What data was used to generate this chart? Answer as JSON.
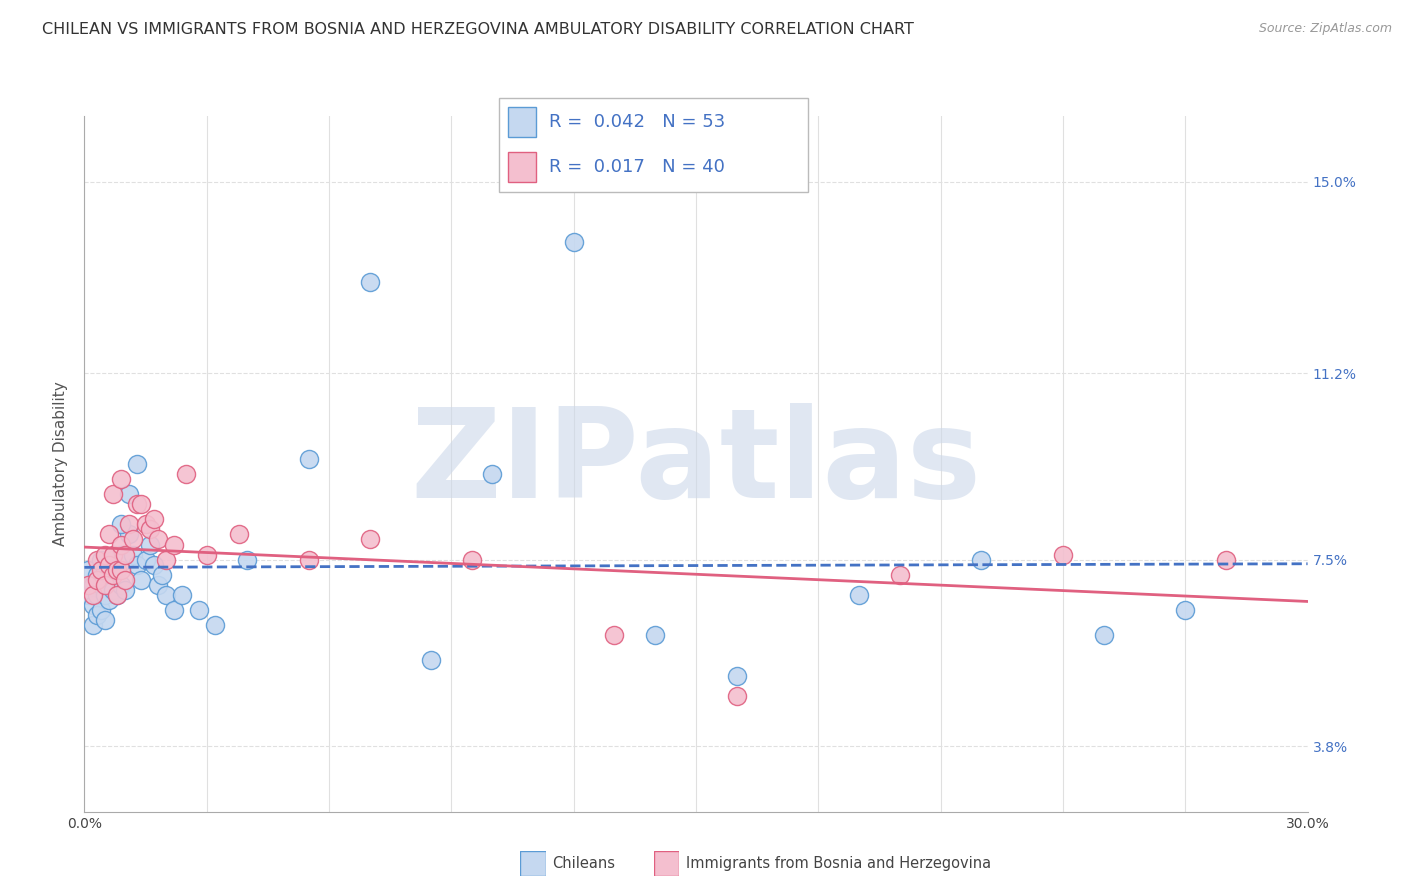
{
  "title": "CHILEAN VS IMMIGRANTS FROM BOSNIA AND HERZEGOVINA AMBULATORY DISABILITY CORRELATION CHART",
  "source": "Source: ZipAtlas.com",
  "ylabel": "Ambulatory Disability",
  "xlim": [
    0.0,
    0.3
  ],
  "ylim": [
    0.025,
    0.163
  ],
  "yticks": [
    0.038,
    0.075,
    0.112,
    0.15
  ],
  "ytick_labels": [
    "3.8%",
    "7.5%",
    "11.2%",
    "15.0%"
  ],
  "xtick_labels": [
    "0.0%",
    "30.0%"
  ],
  "xtick_positions": [
    0.0,
    0.3
  ],
  "series": [
    {
      "label": "Chileans",
      "R": 0.042,
      "N": 53,
      "color": "#c5d8f0",
      "edge_color": "#5b9bd5",
      "line_color": "#4472c4",
      "line_style": "--",
      "x": [
        0.001,
        0.001,
        0.002,
        0.002,
        0.002,
        0.003,
        0.003,
        0.003,
        0.004,
        0.004,
        0.004,
        0.005,
        0.005,
        0.005,
        0.006,
        0.006,
        0.007,
        0.007,
        0.008,
        0.008,
        0.009,
        0.009,
        0.01,
        0.01,
        0.011,
        0.012,
        0.013,
        0.014,
        0.015,
        0.016,
        0.017,
        0.018,
        0.019,
        0.02,
        0.022,
        0.024,
        0.028,
        0.032,
        0.04,
        0.055,
        0.07,
        0.085,
        0.1,
        0.12,
        0.14,
        0.16,
        0.19,
        0.22,
        0.25,
        0.27,
        0.009,
        0.011,
        0.013
      ],
      "y": [
        0.073,
        0.068,
        0.07,
        0.066,
        0.062,
        0.072,
        0.068,
        0.064,
        0.075,
        0.07,
        0.065,
        0.073,
        0.068,
        0.063,
        0.072,
        0.067,
        0.075,
        0.069,
        0.074,
        0.068,
        0.076,
        0.07,
        0.075,
        0.069,
        0.08,
        0.076,
        0.074,
        0.071,
        0.075,
        0.078,
        0.074,
        0.07,
        0.072,
        0.068,
        0.065,
        0.068,
        0.065,
        0.062,
        0.075,
        0.095,
        0.13,
        0.055,
        0.092,
        0.138,
        0.06,
        0.052,
        0.068,
        0.075,
        0.06,
        0.065,
        0.082,
        0.088,
        0.094
      ]
    },
    {
      "label": "Immigrants from Bosnia and Herzegovina",
      "R": 0.017,
      "N": 40,
      "color": "#f4bfcf",
      "edge_color": "#e06080",
      "line_color": "#e06080",
      "line_style": "-",
      "x": [
        0.001,
        0.002,
        0.003,
        0.003,
        0.004,
        0.005,
        0.005,
        0.006,
        0.006,
        0.007,
        0.007,
        0.008,
        0.008,
        0.009,
        0.009,
        0.01,
        0.01,
        0.011,
        0.012,
        0.013,
        0.014,
        0.015,
        0.016,
        0.017,
        0.018,
        0.02,
        0.022,
        0.025,
        0.03,
        0.038,
        0.055,
        0.07,
        0.095,
        0.13,
        0.16,
        0.2,
        0.24,
        0.28,
        0.007,
        0.009
      ],
      "y": [
        0.07,
        0.068,
        0.075,
        0.071,
        0.073,
        0.076,
        0.07,
        0.08,
        0.074,
        0.076,
        0.072,
        0.073,
        0.068,
        0.078,
        0.073,
        0.076,
        0.071,
        0.082,
        0.079,
        0.086,
        0.086,
        0.082,
        0.081,
        0.083,
        0.079,
        0.075,
        0.078,
        0.092,
        0.076,
        0.08,
        0.075,
        0.079,
        0.075,
        0.06,
        0.048,
        0.072,
        0.076,
        0.075,
        0.088,
        0.091
      ]
    }
  ],
  "watermark_text": "ZIPatlas",
  "watermark_color": "#ccd8ea",
  "background_color": "#ffffff",
  "grid_color": "#e0e0e0",
  "title_fontsize": 11.5,
  "axis_label_fontsize": 11,
  "tick_fontsize": 10,
  "legend_fontsize": 13
}
